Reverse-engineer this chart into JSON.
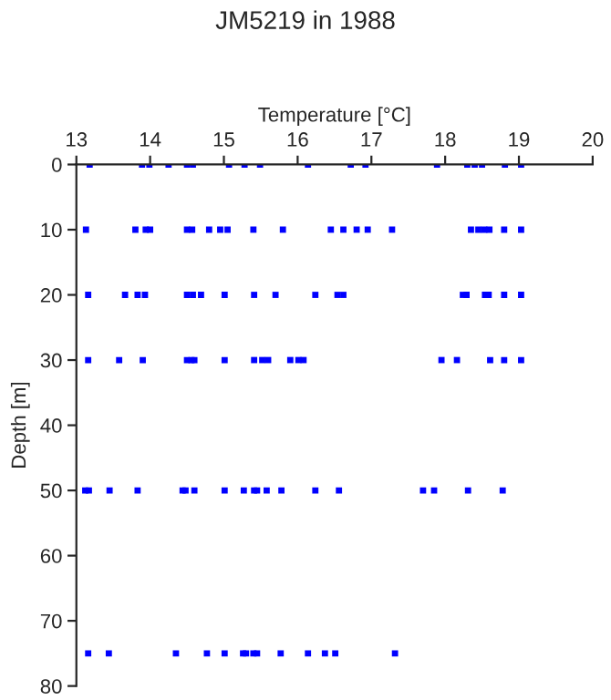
{
  "chart_data": {
    "type": "scatter",
    "title": "JM5219 in 1988",
    "xlabel": "Temperature [°C]",
    "ylabel": "Depth [m]",
    "xlim": [
      13,
      20
    ],
    "xticks": [
      13,
      14,
      15,
      16,
      17,
      18,
      19,
      20
    ],
    "ylim": [
      80,
      0
    ],
    "yticks": [
      0,
      10,
      20,
      30,
      40,
      50,
      60,
      70,
      80
    ],
    "grid": false,
    "marker": "square",
    "series": [
      {
        "color": "#0000ff",
        "x": [
          13.18,
          13.89,
          13.99,
          14.25,
          14.5,
          14.58,
          15.07,
          15.28,
          15.49,
          16.14,
          16.72,
          16.92,
          17.89,
          18.3,
          18.4,
          18.5,
          18.81,
          19.03,
          13.13,
          13.8,
          13.94,
          14.0,
          14.5,
          14.57,
          14.8,
          14.95,
          15.05,
          15.4,
          15.8,
          16.45,
          16.62,
          16.8,
          16.95,
          17.28,
          18.35,
          18.45,
          18.53,
          18.6,
          18.8,
          19.03,
          13.16,
          13.66,
          13.83,
          13.93,
          14.5,
          14.58,
          14.69,
          15.01,
          15.41,
          15.7,
          16.24,
          16.54,
          16.62,
          18.24,
          18.29,
          18.54,
          18.59,
          18.8,
          19.03,
          13.16,
          13.58,
          13.9,
          14.5,
          14.56,
          14.6,
          15.01,
          15.41,
          15.52,
          15.6,
          15.9,
          16.01,
          16.08,
          17.95,
          18.16,
          18.61,
          18.8,
          19.03,
          13.12,
          13.17,
          13.45,
          13.83,
          14.44,
          14.48,
          14.6,
          15.01,
          15.27,
          15.41,
          15.45,
          15.58,
          15.78,
          16.24,
          16.56,
          17.7,
          17.85,
          18.31,
          18.78,
          13.16,
          13.44,
          14.35,
          14.77,
          15.01,
          15.26,
          15.3,
          15.4,
          15.45,
          15.77,
          16.14,
          16.37,
          16.51,
          17.32
        ],
        "values": [
          0,
          0,
          0,
          0,
          0,
          0,
          0,
          0,
          0,
          0,
          0,
          0,
          0,
          0,
          0,
          0,
          0,
          0,
          10,
          10,
          10,
          10,
          10,
          10,
          10,
          10,
          10,
          10,
          10,
          10,
          10,
          10,
          10,
          10,
          10,
          10,
          10,
          10,
          10,
          10,
          20,
          20,
          20,
          20,
          20,
          20,
          20,
          20,
          20,
          20,
          20,
          20,
          20,
          20,
          20,
          20,
          20,
          20,
          20,
          30,
          30,
          30,
          30,
          30,
          30,
          30,
          30,
          30,
          30,
          30,
          30,
          30,
          30,
          30,
          30,
          30,
          30,
          50,
          50,
          50,
          50,
          50,
          50,
          50,
          50,
          50,
          50,
          50,
          50,
          50,
          50,
          50,
          50,
          50,
          50,
          50,
          75,
          75,
          75,
          75,
          75,
          75,
          75,
          75,
          75,
          75,
          75,
          75,
          75,
          75
        ]
      }
    ]
  }
}
